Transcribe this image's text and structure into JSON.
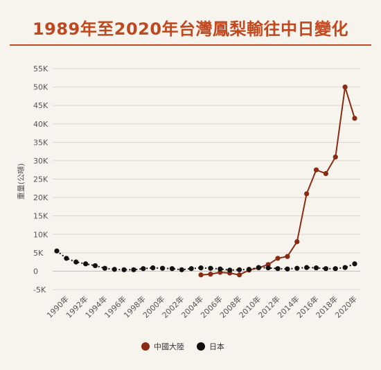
{
  "chart_data": {
    "type": "line",
    "title": "1989年至2020年台灣鳳梨輸往中日變化",
    "ylabel": "重量(公噸)",
    "xlabel": "",
    "ylim": [
      -5000,
      55000
    ],
    "y_ticks": [
      -5000,
      0,
      5000,
      10000,
      15000,
      20000,
      25000,
      30000,
      35000,
      40000,
      45000,
      50000,
      55000
    ],
    "y_tick_labels": [
      "-5K",
      "0",
      "5K",
      "10K",
      "15K",
      "20K",
      "25K",
      "30K",
      "35K",
      "40K",
      "45K",
      "50K",
      "55K"
    ],
    "x_tick_labels": [
      "1990年",
      "1992年",
      "1994年",
      "1996年",
      "1998年",
      "2000年",
      "2002年",
      "2004年",
      "2006年",
      "2008年",
      "2010年",
      "2012年",
      "2014年",
      "2016年",
      "2018年",
      "2020年"
    ],
    "x": [
      1989,
      1990,
      1991,
      1992,
      1993,
      1994,
      1995,
      1996,
      1997,
      1998,
      1999,
      2000,
      2001,
      2002,
      2003,
      2004,
      2005,
      2006,
      2007,
      2008,
      2009,
      2010,
      2011,
      2012,
      2013,
      2014,
      2015,
      2016,
      2017,
      2018,
      2019,
      2020
    ],
    "grid": true,
    "legend_position": "bottom",
    "series": [
      {
        "name": "中國大陸",
        "color": "#8b2a12",
        "style": "solid",
        "values": [
          null,
          null,
          null,
          null,
          null,
          null,
          null,
          null,
          null,
          null,
          null,
          null,
          null,
          null,
          null,
          -1000,
          -800,
          -300,
          -500,
          -1000,
          300,
          900,
          1800,
          3500,
          4000,
          8000,
          21000,
          27500,
          26500,
          31000,
          50000,
          41500
        ]
      },
      {
        "name": "日本",
        "color": "#111111",
        "style": "dotted",
        "values": [
          5500,
          3500,
          2500,
          2000,
          1500,
          800,
          500,
          400,
          400,
          700,
          900,
          800,
          700,
          400,
          700,
          900,
          800,
          600,
          300,
          400,
          500,
          1000,
          900,
          700,
          600,
          800,
          1000,
          900,
          700,
          700,
          1000,
          2000
        ]
      }
    ]
  }
}
